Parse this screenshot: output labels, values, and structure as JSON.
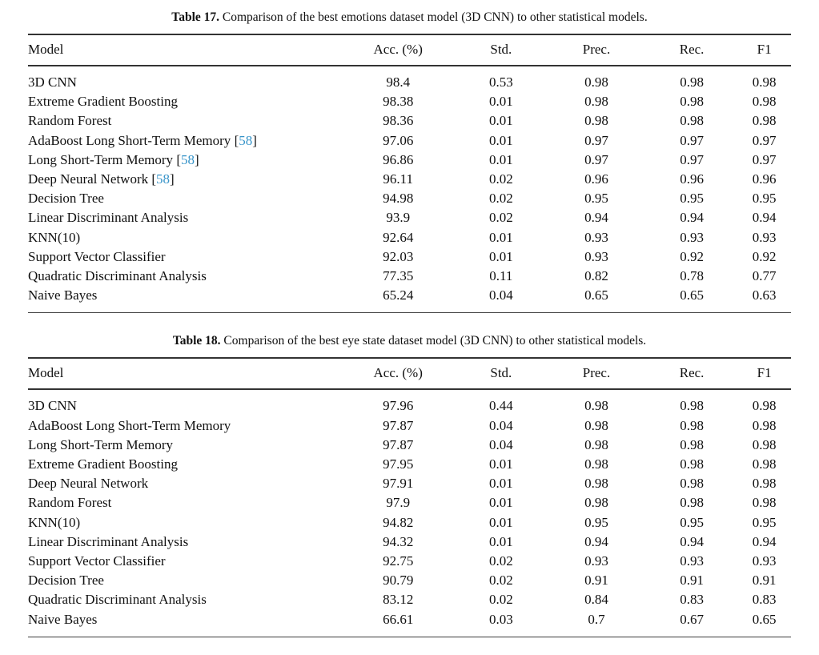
{
  "page": {
    "background_color": "#ffffff",
    "text_color": "#131313",
    "rule_color": "#333333",
    "citation_color": "#3794c9"
  },
  "tables": [
    {
      "caption_label": "Table 17.",
      "caption_text": "Comparison of the best emotions dataset model (3D CNN) to other statistical models.",
      "columns": [
        "Model",
        "Acc. (%)",
        "Std.",
        "Prec.",
        "Rec.",
        "F1"
      ],
      "rows": [
        {
          "model": "3D CNN",
          "citation": "",
          "acc": "98.4",
          "std": "0.53",
          "prec": "0.98",
          "rec": "0.98",
          "f1": "0.98"
        },
        {
          "model": "Extreme Gradient Boosting",
          "citation": "",
          "acc": "98.38",
          "std": "0.01",
          "prec": "0.98",
          "rec": "0.98",
          "f1": "0.98"
        },
        {
          "model": "Random Forest",
          "citation": "",
          "acc": "98.36",
          "std": "0.01",
          "prec": "0.98",
          "rec": "0.98",
          "f1": "0.98"
        },
        {
          "model": "AdaBoost Long Short-Term Memory",
          "citation": "58",
          "acc": "97.06",
          "std": "0.01",
          "prec": "0.97",
          "rec": "0.97",
          "f1": "0.97"
        },
        {
          "model": "Long Short-Term Memory",
          "citation": "58",
          "acc": "96.86",
          "std": "0.01",
          "prec": "0.97",
          "rec": "0.97",
          "f1": "0.97"
        },
        {
          "model": "Deep Neural Network",
          "citation": "58",
          "acc": "96.11",
          "std": "0.02",
          "prec": "0.96",
          "rec": "0.96",
          "f1": "0.96"
        },
        {
          "model": "Decision Tree",
          "citation": "",
          "acc": "94.98",
          "std": "0.02",
          "prec": "0.95",
          "rec": "0.95",
          "f1": "0.95"
        },
        {
          "model": "Linear Discriminant Analysis",
          "citation": "",
          "acc": "93.9",
          "std": "0.02",
          "prec": "0.94",
          "rec": "0.94",
          "f1": "0.94"
        },
        {
          "model": "KNN(10)",
          "citation": "",
          "acc": "92.64",
          "std": "0.01",
          "prec": "0.93",
          "rec": "0.93",
          "f1": "0.93"
        },
        {
          "model": "Support Vector Classifier",
          "citation": "",
          "acc": "92.03",
          "std": "0.01",
          "prec": "0.93",
          "rec": "0.92",
          "f1": "0.92"
        },
        {
          "model": "Quadratic Discriminant Analysis",
          "citation": "",
          "acc": "77.35",
          "std": "0.11",
          "prec": "0.82",
          "rec": "0.78",
          "f1": "0.77"
        },
        {
          "model": "Naive Bayes",
          "citation": "",
          "acc": "65.24",
          "std": "0.04",
          "prec": "0.65",
          "rec": "0.65",
          "f1": "0.63"
        }
      ]
    },
    {
      "caption_label": "Table 18.",
      "caption_text": "Comparison of the best eye state dataset model (3D CNN) to other statistical models.",
      "columns": [
        "Model",
        "Acc. (%)",
        "Std.",
        "Prec.",
        "Rec.",
        "F1"
      ],
      "rows": [
        {
          "model": "3D CNN",
          "citation": "",
          "acc": "97.96",
          "std": "0.44",
          "prec": "0.98",
          "rec": "0.98",
          "f1": "0.98"
        },
        {
          "model": "AdaBoost Long Short-Term Memory",
          "citation": "",
          "acc": "97.87",
          "std": "0.04",
          "prec": "0.98",
          "rec": "0.98",
          "f1": "0.98"
        },
        {
          "model": "Long Short-Term Memory",
          "citation": "",
          "acc": "97.87",
          "std": "0.04",
          "prec": "0.98",
          "rec": "0.98",
          "f1": "0.98"
        },
        {
          "model": "Extreme Gradient Boosting",
          "citation": "",
          "acc": "97.95",
          "std": "0.01",
          "prec": "0.98",
          "rec": "0.98",
          "f1": "0.98"
        },
        {
          "model": "Deep Neural Network",
          "citation": "",
          "acc": "97.91",
          "std": "0.01",
          "prec": "0.98",
          "rec": "0.98",
          "f1": "0.98"
        },
        {
          "model": "Random Forest",
          "citation": "",
          "acc": "97.9",
          "std": "0.01",
          "prec": "0.98",
          "rec": "0.98",
          "f1": "0.98"
        },
        {
          "model": "KNN(10)",
          "citation": "",
          "acc": "94.82",
          "std": "0.01",
          "prec": "0.95",
          "rec": "0.95",
          "f1": "0.95"
        },
        {
          "model": "Linear Discriminant Analysis",
          "citation": "",
          "acc": "94.32",
          "std": "0.01",
          "prec": "0.94",
          "rec": "0.94",
          "f1": "0.94"
        },
        {
          "model": "Support Vector Classifier",
          "citation": "",
          "acc": "92.75",
          "std": "0.02",
          "prec": "0.93",
          "rec": "0.93",
          "f1": "0.93"
        },
        {
          "model": "Decision Tree",
          "citation": "",
          "acc": "90.79",
          "std": "0.02",
          "prec": "0.91",
          "rec": "0.91",
          "f1": "0.91"
        },
        {
          "model": "Quadratic Discriminant Analysis",
          "citation": "",
          "acc": "83.12",
          "std": "0.02",
          "prec": "0.84",
          "rec": "0.83",
          "f1": "0.83"
        },
        {
          "model": "Naive Bayes",
          "citation": "",
          "acc": "66.61",
          "std": "0.03",
          "prec": "0.7",
          "rec": "0.67",
          "f1": "0.65"
        }
      ]
    }
  ]
}
